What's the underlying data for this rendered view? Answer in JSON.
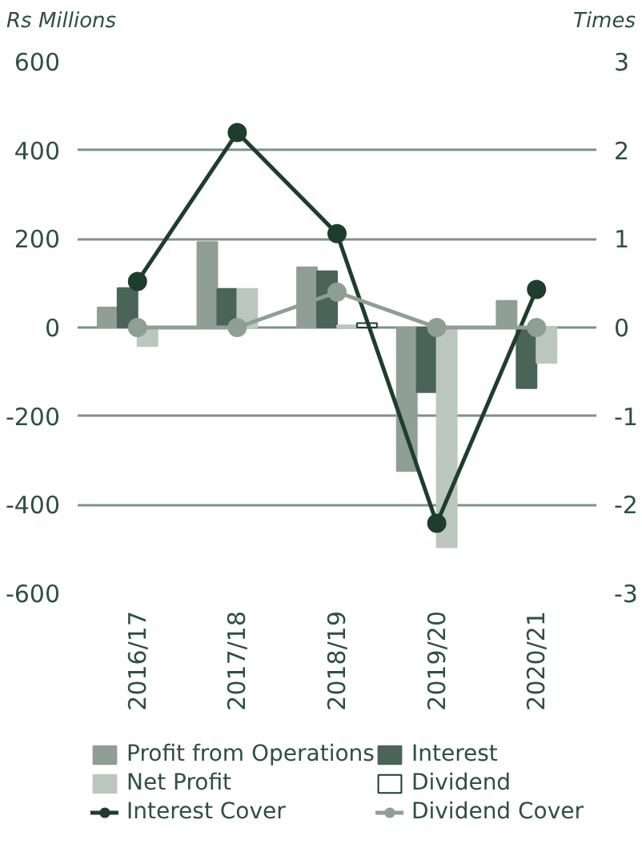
{
  "chart_data": {
    "type": "bar",
    "ylabel": "Rs Millions",
    "y2label": "Times",
    "categories": [
      "2016/17",
      "2017/18",
      "2018/19",
      "2019/20",
      "2020/21"
    ],
    "series": [
      {
        "name": "Profit from Operations",
        "color": "#8f9e97",
        "values": [
          45,
          193,
          136,
          -324,
          60
        ]
      },
      {
        "name": "Interest",
        "color": "#4a6458",
        "values": [
          89,
          87,
          127,
          -146,
          -137
        ]
      },
      {
        "name": "Net Profit",
        "color": "#bcc6c1",
        "values": [
          -42,
          87,
          5,
          -496,
          -80
        ]
      },
      {
        "name": "Dividend",
        "color": "#ffffff",
        "values": [
          null,
          null,
          10,
          null,
          null
        ]
      },
      {
        "name": "Interest Cover",
        "type": "line",
        "axis": "y2",
        "color": "#1e3d30",
        "values": [
          0.52,
          2.2,
          1.06,
          -2.21,
          0.43
        ]
      },
      {
        "name": "Dividend Cover",
        "type": "line",
        "axis": "y2",
        "color": "#8f9e97",
        "values": [
          0,
          0,
          0.4,
          0,
          0
        ]
      }
    ],
    "ylim": [
      -600,
      600
    ],
    "yticks": [
      -600,
      -400,
      -200,
      0,
      200,
      400,
      600
    ],
    "y2lim": [
      -3,
      3
    ],
    "y2ticks": [
      -3,
      -2,
      -1,
      0,
      1,
      2,
      3
    ],
    "grid": "y",
    "legend": "bottom",
    "marker": "circle",
    "line_style": "solid"
  }
}
